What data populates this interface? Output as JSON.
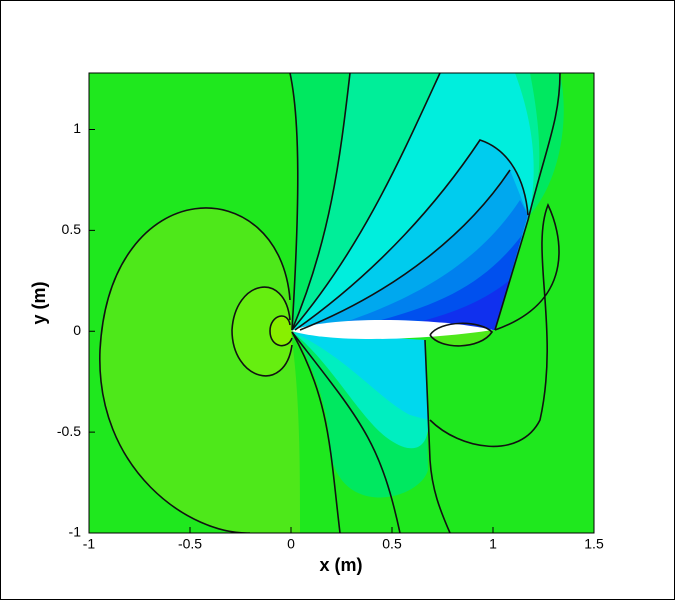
{
  "chart_data": {
    "type": "contour",
    "xlabel": "x (m)",
    "ylabel": "y (m)",
    "xlim": [
      -1,
      1.5
    ],
    "ylim": [
      -1,
      1.28
    ],
    "xticks": [
      -1,
      -0.5,
      0,
      0.5,
      1,
      1.5
    ],
    "yticks": [
      -1,
      -0.5,
      0,
      0.5,
      1
    ]
  }
}
